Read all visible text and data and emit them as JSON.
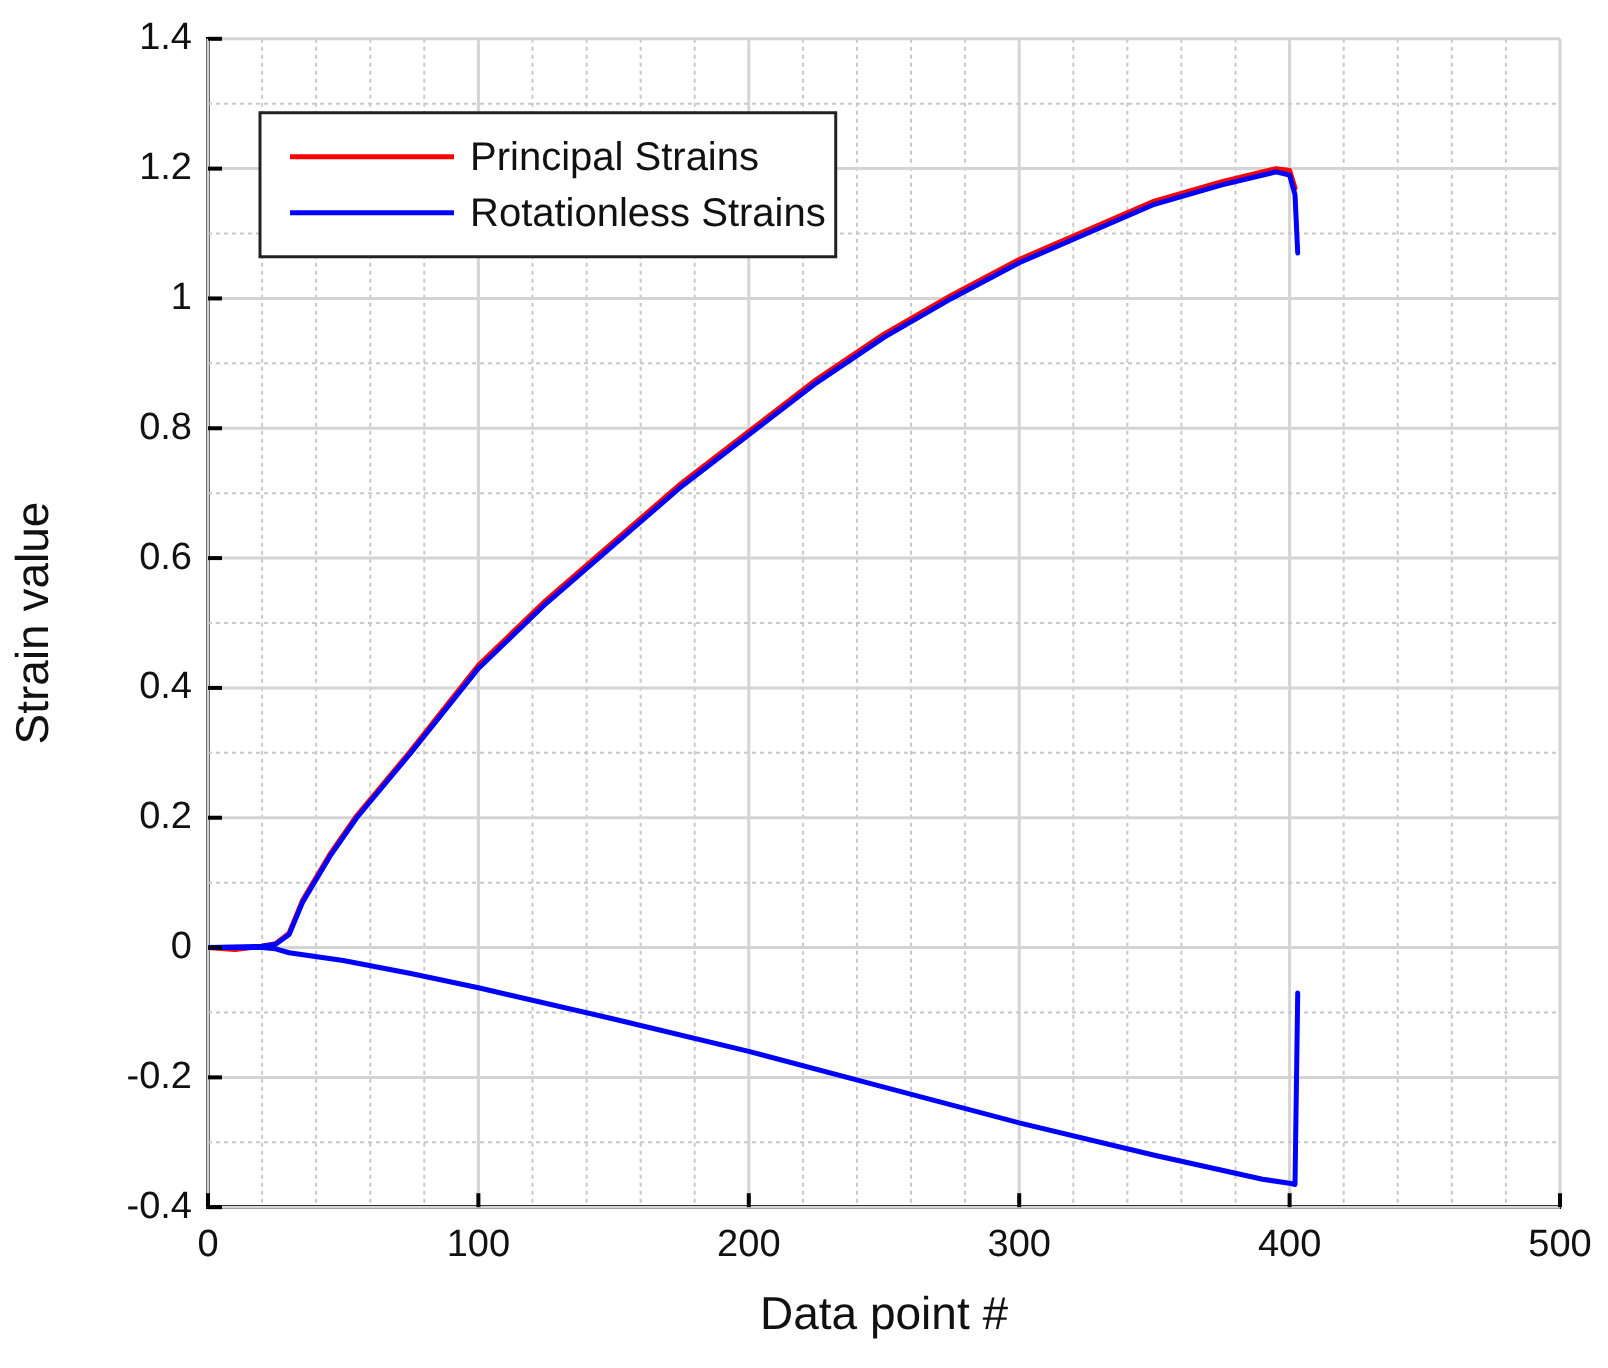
{
  "chart_data": {
    "type": "line",
    "xlabel": "Data point #",
    "ylabel": "Strain value",
    "xlim": [
      0,
      500
    ],
    "ylim": [
      -0.4,
      1.4
    ],
    "xticks": [
      0,
      {
        "value": 20,
        "label": null
      },
      {
        "value": 40,
        "label": null
      },
      {
        "value": 60,
        "label": null
      },
      {
        "value": 80,
        "label": null
      },
      100,
      {
        "value": 120,
        "label": null
      },
      {
        "value": 140,
        "label": null
      },
      {
        "value": 160,
        "label": null
      },
      {
        "value": 180,
        "label": null
      },
      200,
      {
        "value": 220,
        "label": null
      },
      {
        "value": 240,
        "label": null
      },
      {
        "value": 260,
        "label": null
      },
      {
        "value": 280,
        "label": null
      },
      300,
      {
        "value": 320,
        "label": null
      },
      {
        "value": 340,
        "label": null
      },
      {
        "value": 360,
        "label": null
      },
      {
        "value": 380,
        "label": null
      },
      400,
      {
        "value": 420,
        "label": null
      },
      {
        "value": 440,
        "label": null
      },
      {
        "value": 460,
        "label": null
      },
      {
        "value": 480,
        "label": null
      },
      500
    ],
    "yticks": [
      -0.4,
      {
        "value": -0.3,
        "label": null
      },
      -0.2,
      {
        "value": -0.1,
        "label": null
      },
      0,
      {
        "value": 0.1,
        "label": null
      },
      0.2,
      {
        "value": 0.3,
        "label": null
      },
      0.4,
      {
        "value": 0.5,
        "label": null
      },
      0.6,
      {
        "value": 0.7,
        "label": null
      },
      0.8,
      {
        "value": 0.9,
        "label": null
      },
      1,
      {
        "value": 1.1,
        "label": null
      },
      1.2,
      {
        "value": 1.3,
        "label": null
      },
      1.4
    ],
    "grid": true,
    "legend": "top left",
    "marker": "none",
    "line_style": "solid",
    "series": [
      {
        "name": "Principal Strains",
        "color": "#ff0000",
        "x": [
          0,
          10,
          20,
          25,
          30,
          35,
          45,
          55,
          75,
          100,
          125,
          150,
          175,
          200,
          225,
          250,
          275,
          300,
          325,
          350,
          375,
          395,
          400,
          402
        ],
        "values": [
          0,
          -0.003,
          0.002,
          0.006,
          0.022,
          0.073,
          0.143,
          0.203,
          0.303,
          0.435,
          0.535,
          0.625,
          0.715,
          0.795,
          0.875,
          0.945,
          1.005,
          1.06,
          1.105,
          1.15,
          1.18,
          1.2,
          1.197,
          1.17
        ]
      },
      {
        "name": "Rotationless Strains",
        "color": "#0000ff",
        "x": [
          0,
          20,
          25,
          30,
          35,
          45,
          55,
          75,
          100,
          125,
          150,
          175,
          200,
          225,
          250,
          275,
          300,
          325,
          350,
          375,
          395,
          400,
          402,
          403
        ],
        "values": [
          0,
          0.002,
          0.005,
          0.02,
          0.07,
          0.14,
          0.2,
          0.3,
          0.43,
          0.53,
          0.62,
          0.71,
          0.79,
          0.87,
          0.94,
          1.0,
          1.055,
          1.1,
          1.145,
          1.175,
          1.195,
          1.19,
          1.16,
          1.07
        ]
      },
      {
        "color": "#0000ff",
        "x": [
          0,
          20,
          25,
          30,
          50,
          75,
          100,
          150,
          200,
          250,
          300,
          350,
          390,
          400,
          402,
          403
        ],
        "values": [
          0,
          0,
          -0.002,
          -0.008,
          -0.02,
          -0.04,
          -0.062,
          -0.11,
          -0.16,
          -0.215,
          -0.27,
          -0.32,
          -0.357,
          -0.363,
          -0.365,
          -0.07
        ]
      }
    ]
  }
}
